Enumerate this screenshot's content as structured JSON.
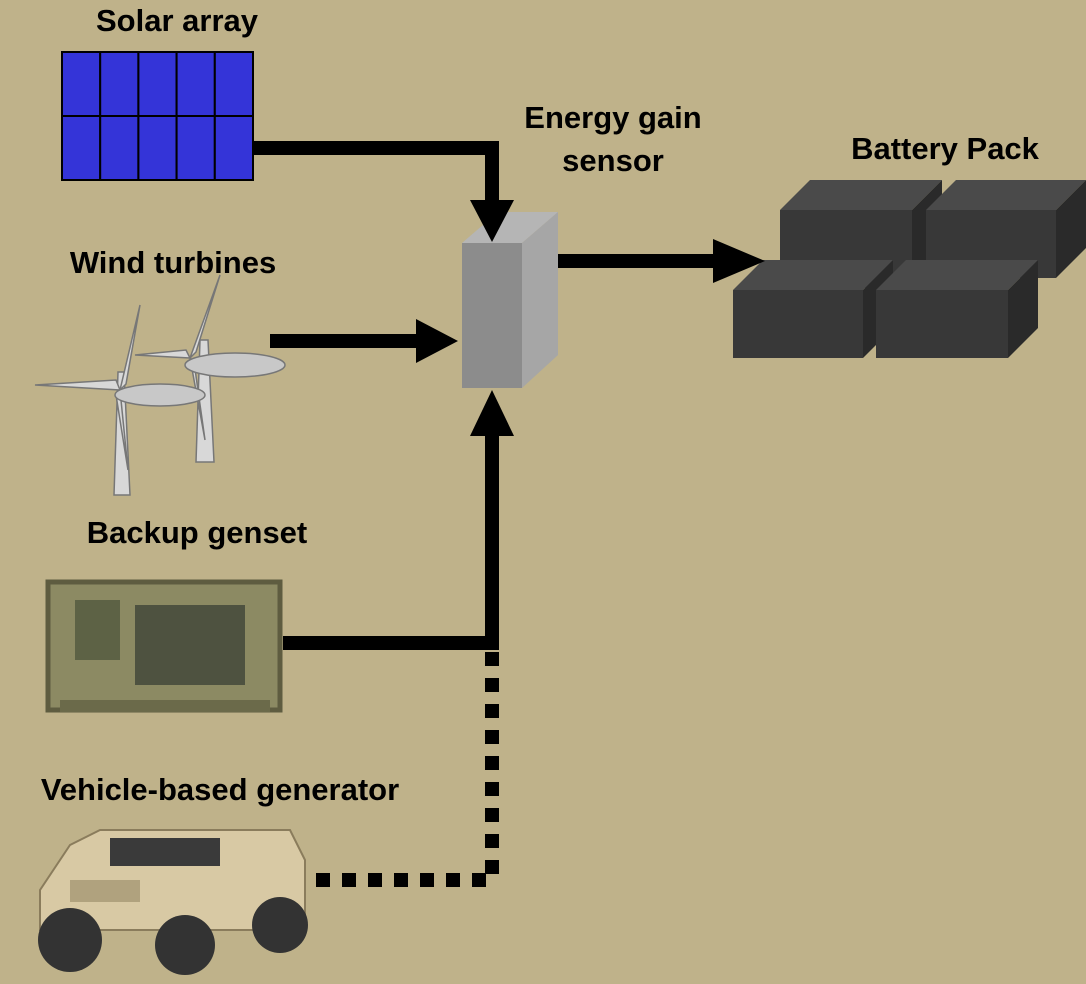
{
  "nodes": [
    {
      "label": "Solar array"
    },
    {
      "label_lines": [
        "Energy gain",
        "sensor"
      ]
    },
    {
      "label": "Battery Pack"
    },
    {
      "label": "Wind turbines"
    },
    {
      "label": "Backup genset"
    },
    {
      "label": "Vehicle-based generator"
    }
  ]
}
